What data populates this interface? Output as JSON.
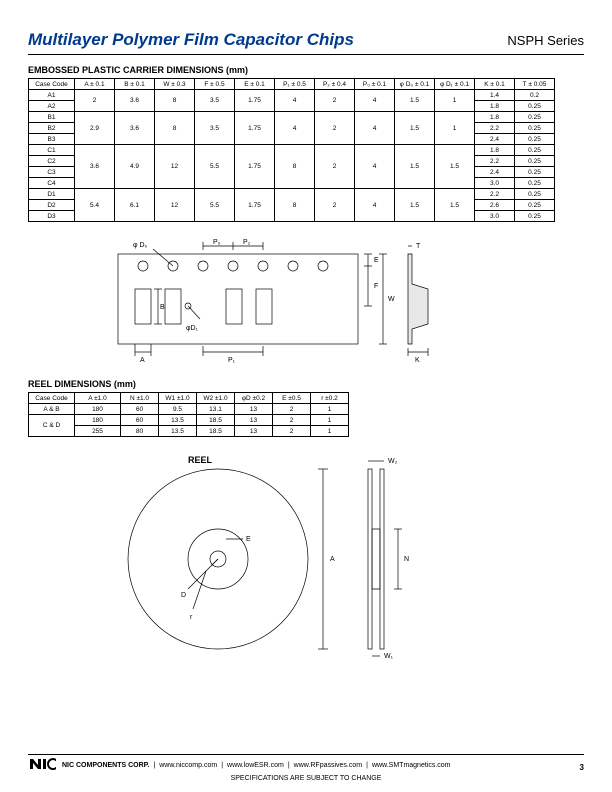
{
  "header": {
    "title": "Multilayer Polymer Film Capacitor Chips",
    "series": "NSPH Series"
  },
  "carrier": {
    "heading": "EMBOSSED PLASTIC CARRIER DIMENSIONS (mm)",
    "columns": [
      "Case Code",
      "A ± 0.1",
      "B ± 0.1",
      "W ± 0.3",
      "F ± 0.5",
      "E ± 0.1",
      "P₁ ± 0.5",
      "P₂ ± 0.4",
      "P₀ ± 0.1",
      "φ D₀ ± 0.1",
      "φ D₁ ± 0.1",
      "K ± 0.1",
      "T ± 0.05"
    ],
    "rows": [
      {
        "code": "A1",
        "a": "2",
        "b": "3.6",
        "w": "8",
        "f": "3.5",
        "e": "1.75",
        "p1": "4",
        "p2": "2",
        "p0": "4",
        "d0": "1.5",
        "d1": "1",
        "k": "1.4",
        "t": "0.2",
        "span": 2,
        "spanStart": true
      },
      {
        "code": "A2",
        "k": "1.8",
        "t": "0.25"
      },
      {
        "code": "B1",
        "a": "2.9",
        "b": "3.6",
        "w": "8",
        "f": "3.5",
        "e": "1.75",
        "p1": "4",
        "p2": "2",
        "p0": "4",
        "d0": "1.5",
        "d1": "1",
        "k": "1.8",
        "t": "0.25",
        "span": 3,
        "spanStart": true
      },
      {
        "code": "B2",
        "k": "2.2",
        "t": "0.25"
      },
      {
        "code": "B3",
        "k": "2.4",
        "t": "0.25"
      },
      {
        "code": "C1",
        "a": "3.6",
        "b": "4.9",
        "w": "12",
        "f": "5.5",
        "e": "1.75",
        "p1": "8",
        "p2": "2",
        "p0": "4",
        "d0": "1.5",
        "d1": "1.5",
        "k": "1.8",
        "t": "0.25",
        "span": 4,
        "spanStart": true
      },
      {
        "code": "C2",
        "k": "2.2",
        "t": "0.25"
      },
      {
        "code": "C3",
        "k": "2.4",
        "t": "0.25"
      },
      {
        "code": "C4",
        "k": "3.0",
        "t": "0.25"
      },
      {
        "code": "D1",
        "a": "5.4",
        "b": "6.1",
        "w": "12",
        "f": "5.5",
        "e": "1.75",
        "p1": "8",
        "p2": "2",
        "p0": "4",
        "d0": "1.5",
        "d1": "1.5",
        "k": "2.2",
        "t": "0.25",
        "span": 3,
        "spanStart": true
      },
      {
        "code": "D2",
        "k": "2.6",
        "t": "0.25"
      },
      {
        "code": "D3",
        "k": "3.0",
        "t": "0.25"
      }
    ]
  },
  "reel": {
    "heading": "REEL DIMENSIONS (mm)",
    "columns": [
      "Case Code",
      "A ±1.0",
      "N ±1.0",
      "W1 ±1.0",
      "W2 ±1.0",
      "φD ±0.2",
      "E ±0.5",
      "r ±0.2"
    ],
    "rows": [
      {
        "code": "A & B",
        "a": "180",
        "n": "60",
        "w1": "9.5",
        "w2": "13.1",
        "d": "13",
        "e": "2",
        "r": "1",
        "span": 1,
        "spanStart": true
      },
      {
        "code": "C & D",
        "a": "180",
        "n": "60",
        "w1": "13.5",
        "w2": "18.5",
        "d": "13",
        "e": "2",
        "r": "1",
        "span": 2,
        "spanStart": true
      },
      {
        "a": "255",
        "n": "80",
        "w1": "13.5",
        "w2": "18.5",
        "d": "13",
        "e": "2",
        "r": "1"
      }
    ]
  },
  "carrier_diagram": {
    "labels": {
      "P0": "P₀",
      "P2": "P₂",
      "D0": "φ D₀",
      "B": "B",
      "D1": "φD₁",
      "A": "A",
      "P1": "P₁",
      "E": "E",
      "F": "F",
      "W": "W",
      "T": "T",
      "K": "K"
    },
    "colors": {
      "stroke": "#000",
      "fill": "#fff",
      "shade": "#e8e8e8"
    },
    "line_width": 0.7
  },
  "reel_diagram": {
    "labels": {
      "REEL": "REEL",
      "D": "D",
      "E": "E",
      "r": "r",
      "A": "A",
      "N": "N",
      "W1": "W₁",
      "W2": "W₂"
    },
    "colors": {
      "stroke": "#000",
      "fill": "#fff"
    },
    "line_width": 0.7
  },
  "footer": {
    "company": "NIC COMPONENTS CORP.",
    "links": [
      "www.niccomp.com",
      "www.lowESR.com",
      "www.RFpassives.com",
      "www.SMTmagnetics.com"
    ],
    "note": "SPECIFICATIONS ARE SUBJECT TO CHANGE",
    "page": "3"
  }
}
